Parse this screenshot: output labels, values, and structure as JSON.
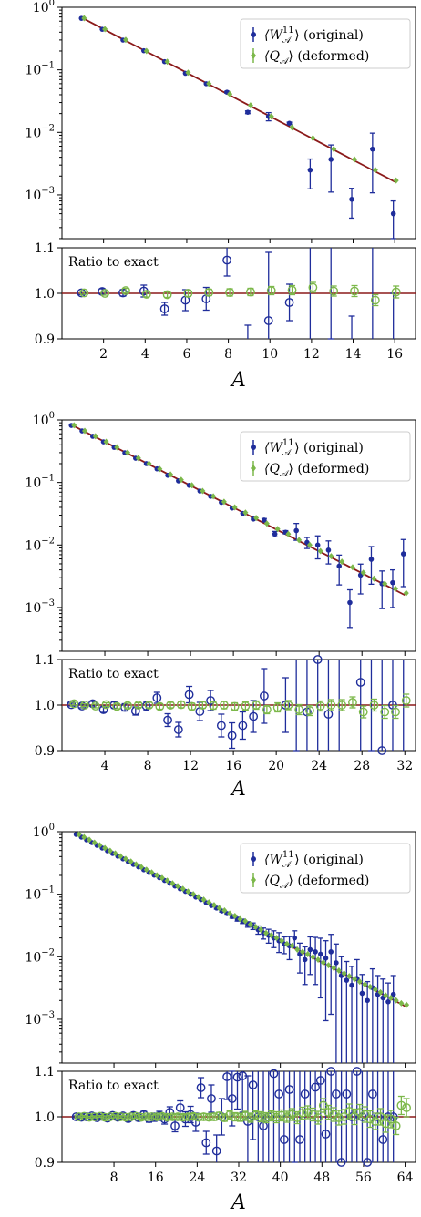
{
  "figure": {
    "xlabel": "A",
    "ratio_label": "Ratio to exact",
    "legend": [
      "⟨W11A⟩ (original)",
      "⟨QA⟩ (deformed)"
    ],
    "legend_parts": [
      {
        "main": "⟨W",
        "sup": "11",
        "sub": "𝒜",
        "tail": "⟩ (original)"
      },
      {
        "main": "⟨Q",
        "sup": "",
        "sub": "𝒜",
        "tail": "⟩ (deformed)"
      }
    ],
    "colors": {
      "original": "#1f2d9b",
      "deformed": "#7cb84a",
      "exact": "#8b1a1a"
    }
  },
  "chart_data": [
    {
      "type": "scatter",
      "N": 16,
      "decay": 0.6694,
      "xlim": [
        0,
        17
      ],
      "ylim_log": [
        -3.7,
        0
      ],
      "ratio_ylim": [
        0.9,
        1.1
      ],
      "xticks": [
        2,
        4,
        6,
        8,
        10,
        12,
        14,
        16
      ],
      "yticks": [
        "10^0",
        "10^-1",
        "10^-2",
        "10^-3"
      ],
      "ratio_yticks": [
        "0.9",
        "1.0",
        "1.1"
      ],
      "series": [
        {
          "name": "⟨W11A⟩ (original)",
          "x": [
            1,
            2,
            3,
            4,
            5,
            6,
            7,
            8,
            9,
            10,
            11,
            12,
            13,
            14,
            15,
            16
          ],
          "y": [
            0.665,
            0.445,
            0.299,
            0.202,
            0.135,
            0.088,
            0.06,
            0.044,
            0.021,
            0.018,
            0.014,
            0.0025,
            0.0037,
            0.00085,
            0.0054,
            0.0005
          ],
          "ratio": [
            1.001,
            1.004,
            1.001,
            1.005,
            0.966,
            0.985,
            0.988,
            1.073,
            0.88,
            0.94,
            0.98,
            0.8,
            1.6,
            0.45,
            1.7,
            0.4
          ],
          "ratio_err": [
            0.004,
            0.006,
            0.007,
            0.013,
            0.014,
            0.023,
            0.025,
            0.035,
            0.05,
            0.15,
            0.04,
            0.5,
            0.7,
            0.5,
            0.8,
            0.6
          ]
        },
        {
          "name": "⟨QA⟩ (deformed)",
          "x": [
            1,
            2,
            3,
            4,
            5,
            6,
            7,
            8,
            9,
            10,
            11,
            12,
            13,
            14,
            15,
            16
          ],
          "y": [
            0.67,
            0.447,
            0.301,
            0.2,
            0.135,
            0.09,
            0.06,
            0.041,
            0.027,
            0.018,
            0.012,
            0.0081,
            0.0054,
            0.0037,
            0.0025,
            0.0017
          ],
          "ratio": [
            1.001,
            1.0,
            1.006,
            0.998,
            0.997,
            1.0,
            1.002,
            1.002,
            1.003,
            1.006,
            1.007,
            1.013,
            1.005,
            1.005,
            0.985,
            1.003
          ],
          "ratio_err": [
            0.003,
            0.004,
            0.005,
            0.006,
            0.006,
            0.007,
            0.007,
            0.008,
            0.008,
            0.009,
            0.01,
            0.011,
            0.011,
            0.012,
            0.012,
            0.013
          ]
        }
      ]
    },
    {
      "type": "scatter",
      "N": 32,
      "decay": 0.8175,
      "xlim": [
        0,
        33
      ],
      "ylim_log": [
        -3.7,
        0
      ],
      "ratio_ylim": [
        0.9,
        1.1
      ],
      "xticks": [
        4,
        8,
        12,
        16,
        20,
        24,
        28,
        32
      ],
      "yticks": [
        "10^0",
        "10^-1",
        "10^-2",
        "10^-3"
      ],
      "ratio_yticks": [
        "0.9",
        "1.0",
        "1.1"
      ],
      "series": [
        {
          "name": "⟨W11A⟩ (original)",
          "x": [
            1,
            2,
            3,
            4,
            5,
            6,
            7,
            8,
            9,
            10,
            11,
            12,
            13,
            14,
            15,
            16,
            17,
            18,
            19,
            20,
            21,
            22,
            23,
            24,
            25,
            26,
            27,
            28,
            29,
            30,
            31,
            32
          ],
          "y": [
            0.817,
            0.668,
            0.547,
            0.446,
            0.364,
            0.298,
            0.244,
            0.2,
            0.165,
            0.13,
            0.106,
            0.09,
            0.073,
            0.06,
            0.048,
            0.039,
            0.032,
            0.026,
            0.025,
            0.015,
            0.016,
            0.017,
            0.011,
            0.01,
            0.0083,
            0.0046,
            0.0012,
            0.0033,
            0.0059,
            0.0024,
            0.0025,
            0.0072
          ],
          "ratio": [
            1.001,
            0.998,
            1.003,
            0.99,
            1.0,
            0.995,
            0.987,
            0.998,
            1.016,
            0.967,
            0.946,
            1.023,
            0.986,
            1.01,
            0.955,
            0.933,
            0.955,
            0.975,
            1.02,
            0.78,
            1.0,
            1.2,
            0.985,
            1.1,
            0.98,
            0.7,
            0.3,
            1.05,
            1.5,
            0.9,
            1.0,
            1.3
          ],
          "ratio_err": [
            0.003,
            0.004,
            0.005,
            0.006,
            0.007,
            0.008,
            0.009,
            0.01,
            0.012,
            0.014,
            0.016,
            0.018,
            0.02,
            0.022,
            0.025,
            0.028,
            0.03,
            0.035,
            0.06,
            0.1,
            0.06,
            0.3,
            0.2,
            0.4,
            0.4,
            0.5,
            0.6,
            0.5,
            0.6,
            0.6,
            0.6,
            0.7
          ]
        },
        {
          "name": "⟨QA⟩ (deformed)",
          "x": [
            1,
            2,
            3,
            4,
            5,
            6,
            7,
            8,
            9,
            10,
            11,
            12,
            13,
            14,
            15,
            16,
            17,
            18,
            19,
            20,
            21,
            22,
            23,
            24,
            25,
            26,
            27,
            28,
            29,
            30,
            31,
            32
          ],
          "y": [
            0.82,
            0.67,
            0.548,
            0.448,
            0.366,
            0.3,
            0.245,
            0.2,
            0.164,
            0.134,
            0.11,
            0.09,
            0.073,
            0.06,
            0.049,
            0.04,
            0.033,
            0.027,
            0.022,
            0.018,
            0.015,
            0.012,
            0.01,
            0.008,
            0.0066,
            0.0054,
            0.0044,
            0.0036,
            0.0029,
            0.0024,
            0.002,
            0.0017
          ],
          "ratio": [
            1.003,
            1.0,
            0.998,
            1.001,
            0.997,
            0.999,
            1.0,
            1.0,
            0.997,
            1.0,
            1.001,
            0.997,
            1.0,
            0.999,
            1.0,
            0.997,
            0.998,
            1.0,
            0.99,
            0.995,
            1.0,
            0.99,
            0.988,
            0.998,
            1.0,
            1.0,
            1.006,
            0.985,
            1.0,
            0.985,
            0.985,
            1.01
          ],
          "ratio_err": [
            0.003,
            0.003,
            0.004,
            0.004,
            0.005,
            0.005,
            0.005,
            0.006,
            0.006,
            0.006,
            0.007,
            0.007,
            0.007,
            0.008,
            0.008,
            0.008,
            0.009,
            0.009,
            0.009,
            0.01,
            0.01,
            0.011,
            0.011,
            0.011,
            0.012,
            0.012,
            0.012,
            0.013,
            0.013,
            0.014,
            0.014,
            0.014
          ]
        }
      ]
    },
    {
      "type": "scatter",
      "N": 64,
      "decay": 0.9045,
      "xlim": [
        -2,
        66
      ],
      "ylim_log": [
        -3.7,
        0
      ],
      "ratio_ylim": [
        0.9,
        1.1
      ],
      "xticks": [
        8,
        16,
        24,
        32,
        40,
        48,
        56,
        64
      ],
      "yticks": [
        "10^0",
        "10^-1",
        "10^-2",
        "10^-3"
      ],
      "ratio_yticks": [
        "0.9",
        "1.0",
        "1.1"
      ],
      "series": [
        {
          "name": "⟨W11A⟩ (original)",
          "x": [
            1,
            2,
            3,
            4,
            5,
            6,
            7,
            8,
            9,
            10,
            11,
            12,
            13,
            14,
            15,
            16,
            17,
            18,
            19,
            20,
            21,
            22,
            23,
            24,
            25,
            26,
            27,
            28,
            29,
            30,
            31,
            32,
            33,
            34,
            35,
            36,
            37,
            38,
            39,
            40,
            41,
            42,
            43,
            44,
            45,
            46,
            47,
            48,
            49,
            50,
            51,
            52,
            53,
            54,
            55,
            56,
            57,
            58,
            59,
            60,
            61,
            62
          ],
          "y": [
            0.904,
            0.819,
            0.74,
            0.67,
            0.605,
            0.548,
            0.495,
            0.448,
            0.406,
            0.368,
            0.332,
            0.3,
            0.273,
            0.246,
            0.223,
            0.202,
            0.184,
            0.166,
            0.15,
            0.135,
            0.122,
            0.111,
            0.1,
            0.09,
            0.082,
            0.073,
            0.066,
            0.06,
            0.054,
            0.049,
            0.044,
            0.04,
            0.037,
            0.033,
            0.031,
            0.027,
            0.024,
            0.022,
            0.02,
            0.018,
            0.016,
            0.015,
            0.02,
            0.011,
            0.009,
            0.013,
            0.012,
            0.011,
            0.0095,
            0.012,
            0.008,
            0.005,
            0.0042,
            0.0035,
            0.0045,
            0.0026,
            0.002,
            0.0032,
            0.0025,
            0.0022,
            0.0019,
            0.0025
          ],
          "ratio": [
            1.0,
            0.999,
            1.0,
            1.002,
            0.998,
            1.001,
            0.997,
            1.003,
            0.999,
            1.002,
            0.996,
            1.003,
            0.998,
            1.005,
            0.996,
            0.999,
            1.002,
            0.995,
            1.01,
            0.98,
            1.02,
            0.995,
            1.005,
            0.988,
            1.064,
            0.943,
            1.04,
            0.925,
            1.0,
            1.088,
            1.04,
            1.087,
            1.09,
            0.99,
            1.07,
            1.0,
            0.98,
            1.0,
            1.095,
            1.05,
            0.95,
            1.06,
            1.2,
            0.95,
            1.05,
            1.3,
            1.065,
            1.08,
            0.962,
            1.1,
            1.05,
            0.9,
            1.05,
            1.0,
            1.1,
            1.0,
            0.9,
            1.05,
            1.0,
            0.95,
            1.0,
            1.0
          ],
          "ratio_err": [
            0.002,
            0.002,
            0.003,
            0.003,
            0.003,
            0.004,
            0.004,
            0.004,
            0.005,
            0.005,
            0.006,
            0.006,
            0.007,
            0.007,
            0.008,
            0.009,
            0.01,
            0.011,
            0.012,
            0.013,
            0.015,
            0.016,
            0.018,
            0.02,
            0.022,
            0.025,
            0.03,
            0.035,
            0.04,
            0.05,
            0.06,
            0.07,
            0.08,
            0.1,
            0.12,
            0.15,
            0.2,
            0.25,
            0.3,
            0.35,
            0.3,
            0.4,
            0.3,
            0.5,
            0.6,
            0.6,
            0.7,
            0.8,
            0.9,
            0.9,
            1.0,
            1.0,
            1.0,
            1.0,
            1.0,
            1.0,
            1.0,
            1.0,
            1.0,
            1.0,
            1.0,
            1.0
          ]
        },
        {
          "name": "⟨QA⟩ (deformed)",
          "x": [
            1,
            2,
            3,
            4,
            5,
            6,
            7,
            8,
            9,
            10,
            11,
            12,
            13,
            14,
            15,
            16,
            17,
            18,
            19,
            20,
            21,
            22,
            23,
            24,
            25,
            26,
            27,
            28,
            29,
            30,
            31,
            32,
            33,
            34,
            35,
            36,
            37,
            38,
            39,
            40,
            41,
            42,
            43,
            44,
            45,
            46,
            47,
            48,
            49,
            50,
            51,
            52,
            53,
            54,
            55,
            56,
            57,
            58,
            59,
            60,
            61,
            62,
            63,
            64
          ],
          "y": [
            0.905,
            0.818,
            0.741,
            0.669,
            0.606,
            0.547,
            0.495,
            0.449,
            0.405,
            0.367,
            0.333,
            0.3,
            0.272,
            0.246,
            0.223,
            0.201,
            0.182,
            0.165,
            0.149,
            0.135,
            0.122,
            0.11,
            0.1,
            0.09,
            0.082,
            0.074,
            0.067,
            0.06,
            0.055,
            0.049,
            0.045,
            0.04,
            0.037,
            0.033,
            0.03,
            0.027,
            0.024,
            0.022,
            0.02,
            0.018,
            0.016,
            0.015,
            0.013,
            0.012,
            0.011,
            0.0099,
            0.009,
            0.0081,
            0.0073,
            0.0066,
            0.006,
            0.0054,
            0.0049,
            0.0044,
            0.004,
            0.0036,
            0.0033,
            0.003,
            0.0027,
            0.0024,
            0.0022,
            0.002,
            0.0018,
            0.0017
          ],
          "ratio": [
            1.0,
            1.001,
            0.999,
            1.0,
            1.001,
            0.999,
            1.0,
            1.001,
            1.0,
            0.999,
            1.0,
            1.001,
            0.999,
            1.0,
            1.0,
            1.0,
            1.001,
            0.999,
            1.0,
            1.0,
            0.999,
            1.0,
            1.001,
            0.999,
            1.0,
            0.999,
            1.0,
            1.002,
            0.998,
            1.004,
            1.0,
            0.999,
            1.002,
            0.998,
            1.003,
            1.0,
            0.998,
            1.002,
            0.999,
            1.003,
            1.0,
            1.005,
            0.998,
            1.008,
            1.01,
            1.005,
            0.998,
            1.025,
            1.01,
            1.005,
            0.998,
            1.0,
            1.012,
            1.0,
            1.01,
            1.005,
            0.995,
            0.99,
            1.0,
            0.985,
            0.995,
            0.98,
            1.025,
            1.02
          ],
          "ratio_err": [
            0.002,
            0.002,
            0.002,
            0.002,
            0.002,
            0.003,
            0.003,
            0.003,
            0.003,
            0.003,
            0.004,
            0.004,
            0.004,
            0.004,
            0.004,
            0.005,
            0.005,
            0.005,
            0.005,
            0.006,
            0.006,
            0.006,
            0.006,
            0.007,
            0.007,
            0.007,
            0.008,
            0.008,
            0.008,
            0.009,
            0.009,
            0.009,
            0.01,
            0.01,
            0.01,
            0.011,
            0.011,
            0.011,
            0.012,
            0.012,
            0.012,
            0.013,
            0.013,
            0.013,
            0.014,
            0.014,
            0.014,
            0.015,
            0.015,
            0.015,
            0.016,
            0.016,
            0.016,
            0.017,
            0.017,
            0.017,
            0.018,
            0.018,
            0.018,
            0.019,
            0.019,
            0.019,
            0.02,
            0.02
          ]
        }
      ]
    }
  ]
}
